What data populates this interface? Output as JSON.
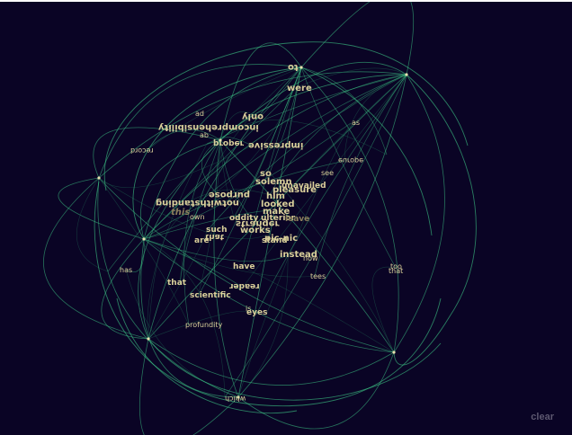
{
  "controls": {
    "clear_label": "clear"
  },
  "colors": {
    "background": "#0a0425",
    "edge": "#3fd08a",
    "edge_dim": "#1f6b55",
    "word": "#d9cf9a",
    "word_dim": "#8a7f5c",
    "clear": "#5d5870"
  },
  "words": [
    "to",
    "were",
    "only",
    "incomprehensibility",
    "ad",
    "ab",
    "proper",
    "record",
    "impressive",
    "europe",
    "as",
    "so",
    "see",
    "solemn",
    "unavailed",
    "pleasure",
    "purpose",
    "him",
    "notwithstanding",
    "looked",
    "this",
    "make",
    "own",
    "oddity",
    "ulterior",
    "leave",
    "stranger",
    "such",
    "that",
    "works",
    "stand",
    "are",
    "pic-nic",
    "instead",
    "now",
    "has",
    "have",
    "tees",
    "that",
    "reader",
    "scientific",
    "is",
    "eyes",
    "profundity",
    "which",
    "too",
    "that"
  ]
}
